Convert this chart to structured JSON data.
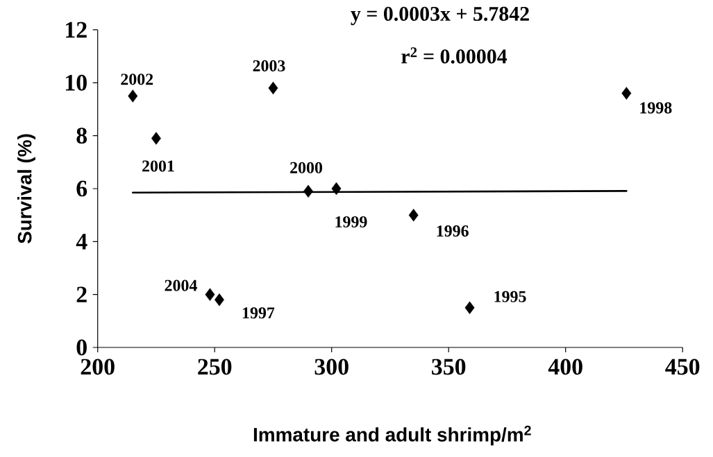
{
  "chart_data": {
    "type": "scatter",
    "xlabel": "Immature and adult shrimp/m$^{2}$",
    "ylabel": "Survival (%)",
    "xlim": [
      200,
      450
    ],
    "ylim": [
      0,
      12
    ],
    "xticks": [
      200,
      250,
      300,
      350,
      400,
      450
    ],
    "yticks": [
      0,
      2,
      4,
      6,
      8,
      10,
      12
    ],
    "grid": false,
    "marker": "diamond",
    "series": [
      {
        "color": "#000000",
        "x": [
          359,
          335,
          252,
          426,
          302,
          290,
          225,
          215,
          275,
          248
        ],
        "values": [
          1.5,
          5.0,
          1.8,
          9.6,
          6.0,
          5.9,
          7.9,
          9.5,
          9.8,
          2.0
        ]
      },
      {
        "type": "line",
        "color": "#000000",
        "x": [
          215,
          426
        ],
        "values": [
          5.85,
          5.91
        ],
        "marker": "none",
        "line_style": "solid"
      }
    ],
    "annotations": [
      "y = 0.0003x + 5.7842",
      "r$^{2}$ = 0.00004",
      {
        "text": "1995",
        "x": 359,
        "y": 1.5
      },
      {
        "text": "1996",
        "x": 335,
        "y": 5.0
      },
      {
        "text": "1997",
        "x": 252,
        "y": 1.8
      },
      {
        "text": "1998",
        "x": 426,
        "y": 9.6
      },
      {
        "text": "1999",
        "x": 302,
        "y": 6.0
      },
      {
        "text": "2000",
        "x": 290,
        "y": 5.9
      },
      {
        "text": "2001",
        "x": 225,
        "y": 7.9
      },
      {
        "text": "2002",
        "x": 215,
        "y": 9.5
      },
      {
        "text": "2003",
        "x": 275,
        "y": 9.8
      },
      {
        "text": "2004",
        "x": 248,
        "y": 2.0
      }
    ]
  }
}
